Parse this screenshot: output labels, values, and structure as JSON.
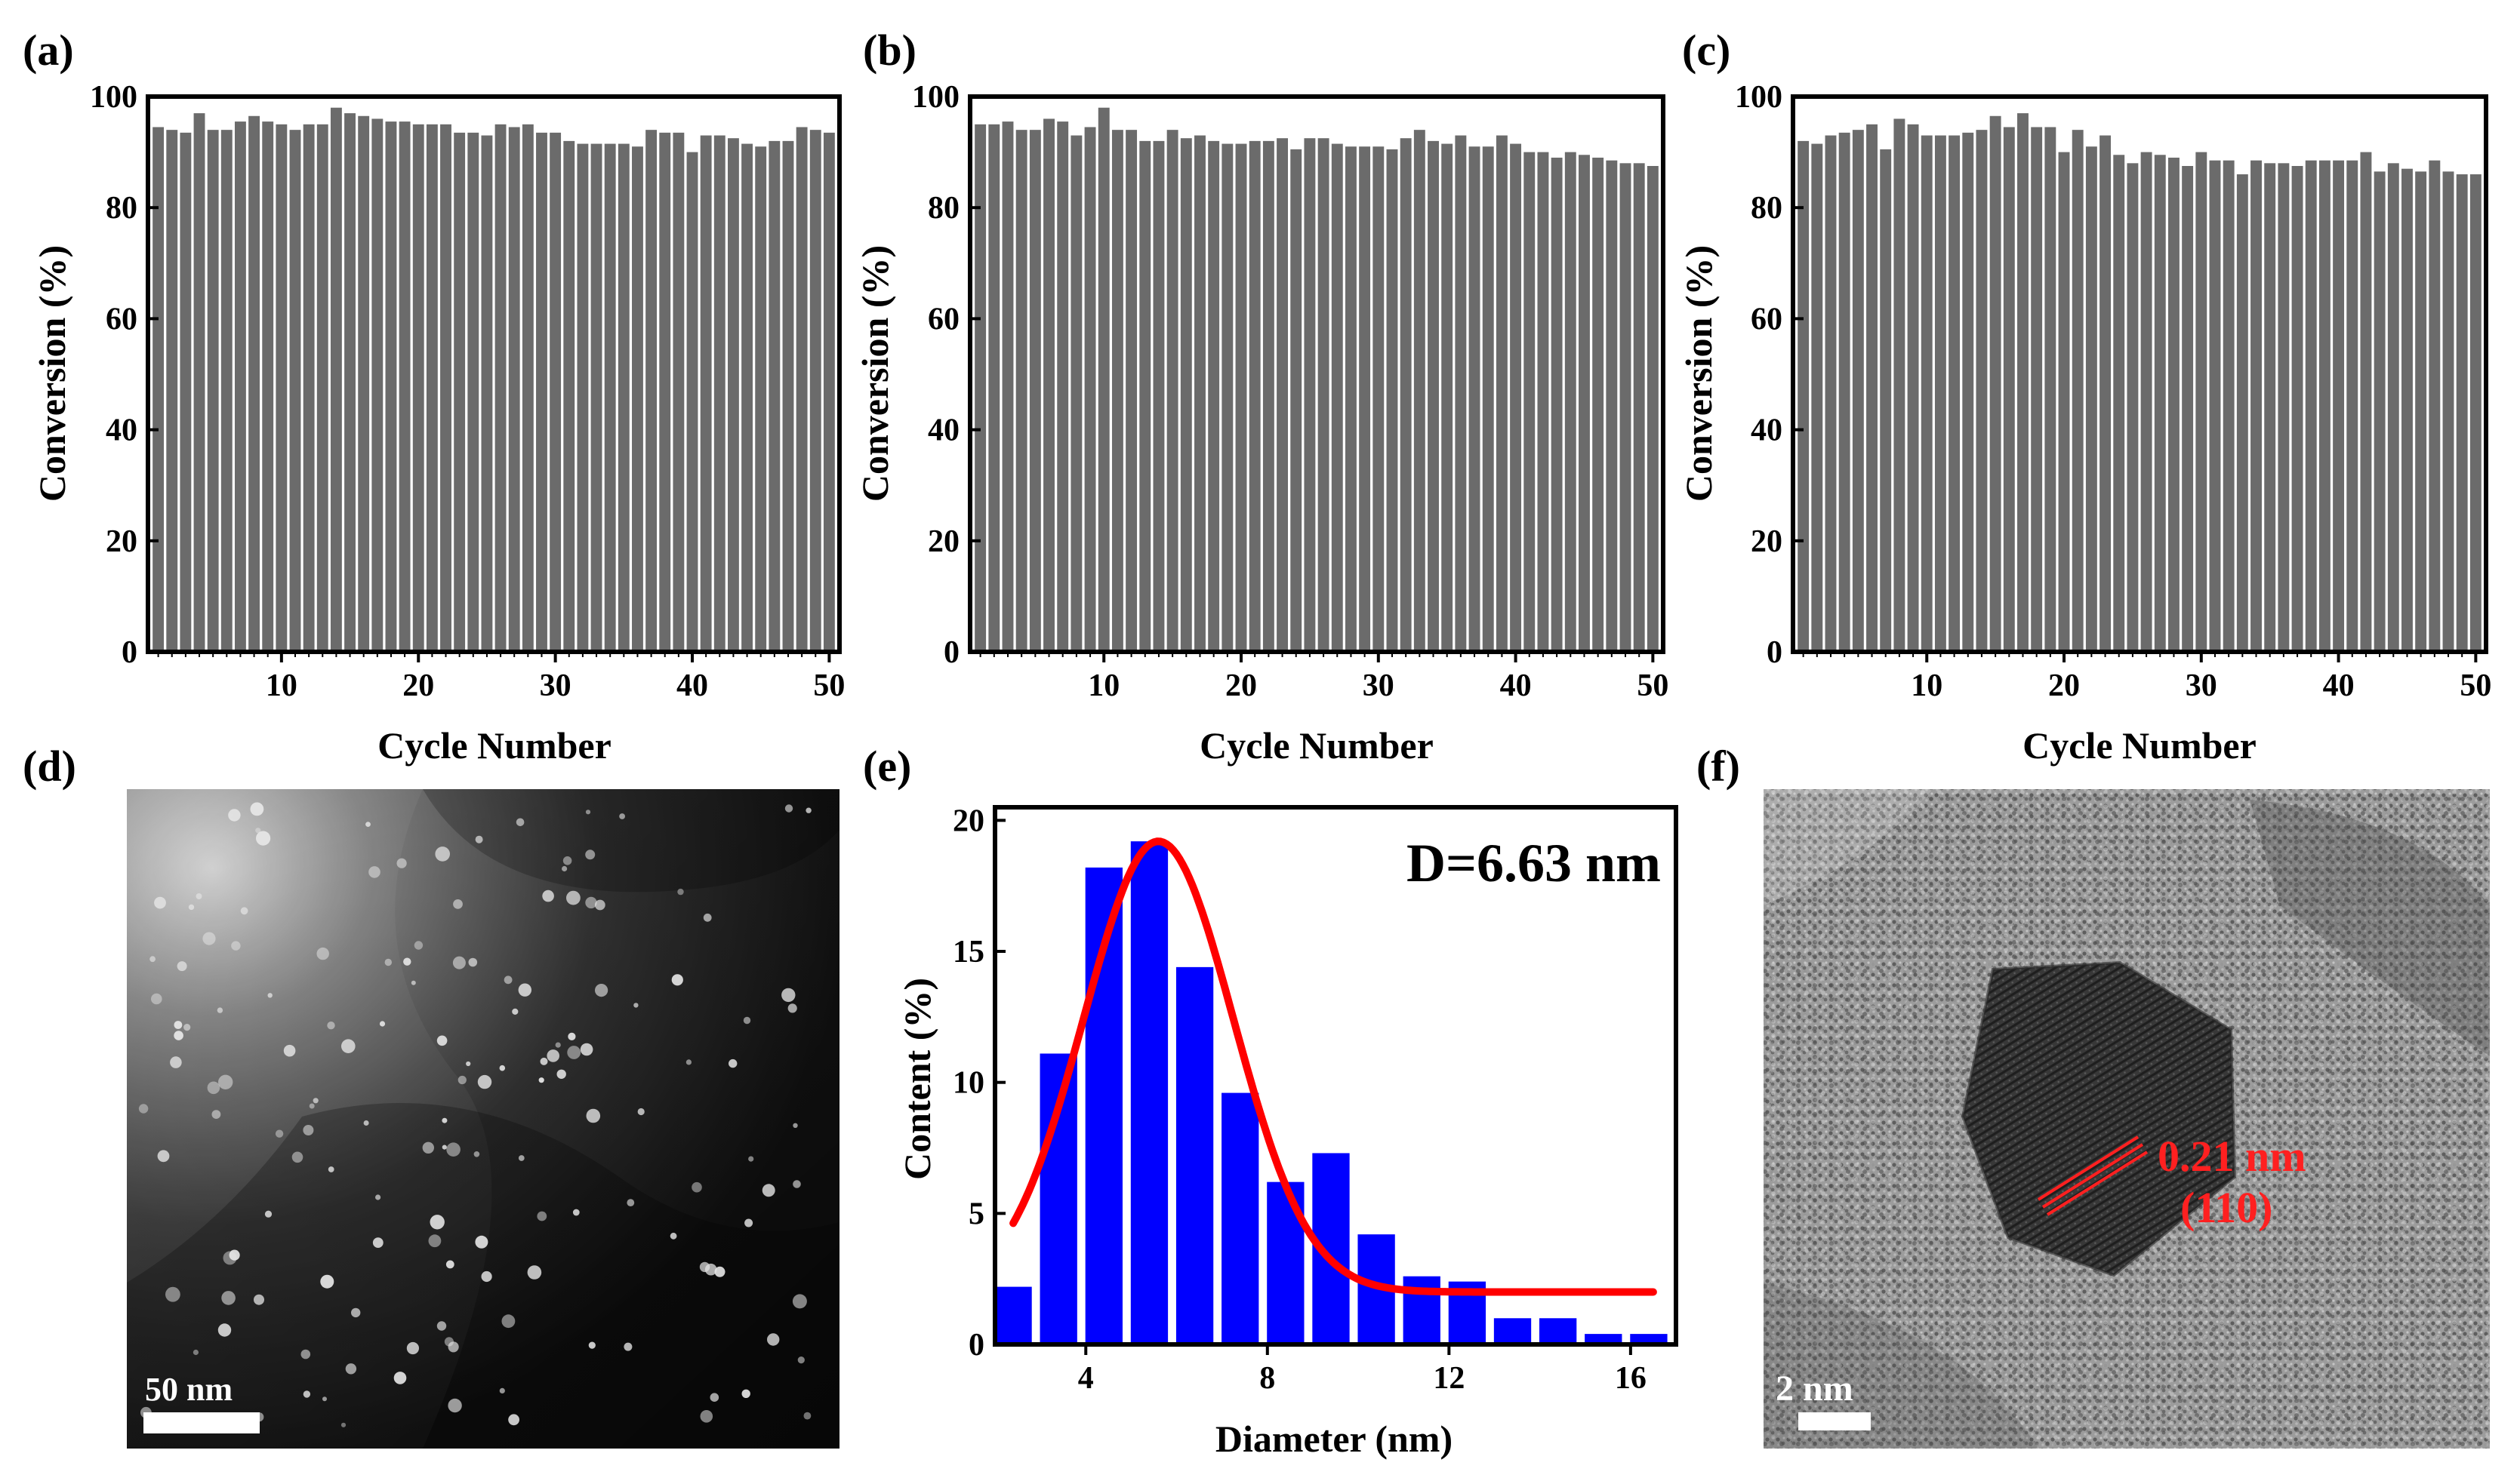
{
  "panel_labels": [
    "(a)",
    "(b)",
    "(c)",
    "(d)",
    "(e)",
    "(f)"
  ],
  "colors": {
    "bar_gray": "#6b6b6b",
    "hist_blue": "#0000ff",
    "fit_red": "#ff0000",
    "axis": "#000000"
  },
  "chart_data": [
    {
      "type": "bar",
      "panel": "(a)",
      "xlabel": "Cycle Number",
      "ylabel": "Conversion (%)",
      "ylim": [
        0,
        100
      ],
      "yticks": [
        0,
        20,
        40,
        60,
        80,
        100
      ],
      "xticks": [
        10,
        20,
        30,
        40,
        50
      ],
      "categories": [
        1,
        2,
        3,
        4,
        5,
        6,
        7,
        8,
        9,
        10,
        11,
        12,
        13,
        14,
        15,
        16,
        17,
        18,
        19,
        20,
        21,
        22,
        23,
        24,
        25,
        26,
        27,
        28,
        29,
        30,
        31,
        32,
        33,
        34,
        35,
        36,
        37,
        38,
        39,
        40,
        41,
        42,
        43,
        44,
        45,
        46,
        47,
        48,
        49,
        50
      ],
      "values": [
        94.5,
        94,
        93.5,
        97,
        94,
        94,
        95.5,
        96.5,
        95.5,
        95,
        94,
        95,
        95,
        98,
        97,
        96.5,
        96,
        95.5,
        95.5,
        95,
        95,
        95,
        93.5,
        93.5,
        93,
        95,
        94.5,
        95,
        93.5,
        93.5,
        92,
        91.5,
        91.5,
        91.5,
        91.5,
        91,
        94,
        93.5,
        93.5,
        90,
        93,
        93,
        92.5,
        91.5,
        91,
        92,
        92,
        94.5,
        94,
        93.5
      ]
    },
    {
      "type": "bar",
      "panel": "(b)",
      "xlabel": "Cycle Number",
      "ylabel": "Conversion (%)",
      "ylim": [
        0,
        100
      ],
      "yticks": [
        0,
        20,
        40,
        60,
        80,
        100
      ],
      "xticks": [
        10,
        20,
        30,
        40,
        50
      ],
      "categories": [
        1,
        2,
        3,
        4,
        5,
        6,
        7,
        8,
        9,
        10,
        11,
        12,
        13,
        14,
        15,
        16,
        17,
        18,
        19,
        20,
        21,
        22,
        23,
        24,
        25,
        26,
        27,
        28,
        29,
        30,
        31,
        32,
        33,
        34,
        35,
        36,
        37,
        38,
        39,
        40,
        41,
        42,
        43,
        44,
        45,
        46,
        47,
        48,
        49,
        50
      ],
      "values": [
        95,
        95,
        95.5,
        94,
        94,
        96,
        95.5,
        93,
        94.5,
        98,
        94,
        94,
        92,
        92,
        94,
        92.5,
        93,
        92,
        91.5,
        91.5,
        92,
        92,
        92.5,
        90.5,
        92.5,
        92.5,
        91.5,
        91,
        91,
        91,
        90.5,
        92.5,
        94,
        92,
        91.5,
        93,
        91,
        91,
        93,
        91.5,
        90,
        90,
        89,
        90,
        89.5,
        89,
        88.5,
        88,
        88,
        87.5
      ]
    },
    {
      "type": "bar",
      "panel": "(c)",
      "xlabel": "Cycle Number",
      "ylabel": "Conversion (%)",
      "ylim": [
        0,
        100
      ],
      "yticks": [
        0,
        20,
        40,
        60,
        80,
        100
      ],
      "xticks": [
        10,
        20,
        30,
        40,
        50
      ],
      "categories": [
        1,
        2,
        3,
        4,
        5,
        6,
        7,
        8,
        9,
        10,
        11,
        12,
        13,
        14,
        15,
        16,
        17,
        18,
        19,
        20,
        21,
        22,
        23,
        24,
        25,
        26,
        27,
        28,
        29,
        30,
        31,
        32,
        33,
        34,
        35,
        36,
        37,
        38,
        39,
        40,
        41,
        42,
        43,
        44,
        45,
        46,
        47,
        48,
        49,
        50
      ],
      "values": [
        92,
        91.5,
        93,
        93.5,
        94,
        95,
        90.5,
        96,
        95,
        93,
        93,
        93,
        93.5,
        94,
        96.5,
        94.5,
        97,
        94.5,
        94.5,
        90,
        94,
        91,
        93,
        89.5,
        88,
        90,
        89.5,
        89,
        87.5,
        90,
        88.5,
        88.5,
        86,
        88.5,
        88,
        88,
        87.5,
        88.5,
        88.5,
        88.5,
        88.5,
        90,
        86.5,
        88,
        87,
        86.5,
        88.5,
        86.5,
        86,
        86
      ]
    },
    {
      "type": "bar",
      "panel": "(e)",
      "title": "D=6.63 nm",
      "xlabel": "Diameter (nm)",
      "ylabel": "Content (%)",
      "xlim": [
        2,
        17
      ],
      "ylim": [
        0,
        20.5
      ],
      "xticks": [
        4,
        8,
        12,
        16
      ],
      "yticks": [
        0,
        5,
        10,
        15,
        20
      ],
      "bin_width": 0.82,
      "x": [
        2.4,
        3.4,
        4.4,
        5.4,
        6.4,
        7.4,
        8.4,
        9.4,
        10.4,
        11.4,
        12.4,
        13.4,
        14.4,
        15.4,
        16.4
      ],
      "values": [
        2.2,
        11.1,
        18.2,
        19.2,
        14.4,
        9.6,
        6.2,
        7.3,
        4.2,
        2.6,
        2.4,
        1.0,
        1.0,
        0.4,
        0.4
      ],
      "fit": {
        "name": "Gaussian fit",
        "y0": 2.0,
        "amplitude": 17.2,
        "center": 5.6,
        "sigma": 1.65,
        "x_start": 2.4,
        "x_end": 16.5
      }
    }
  ],
  "images": {
    "d": {
      "kind": "TEM micrograph",
      "scale_bar": "50 nm"
    },
    "f": {
      "kind": "HRTEM micrograph",
      "scale_bar": "2 nm",
      "annotation_spacing": "0.21 nm",
      "annotation_plane": "(110)"
    }
  }
}
